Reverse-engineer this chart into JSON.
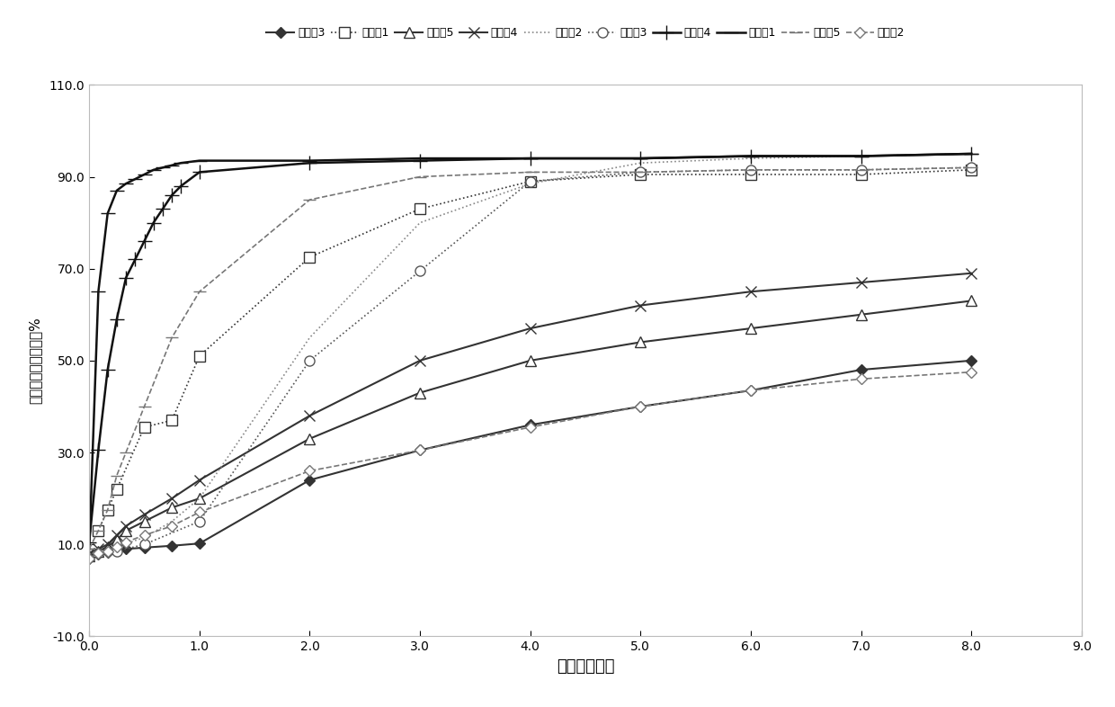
{
  "series": [
    {
      "name": "比较例3",
      "marker": "D",
      "linestyle": "-",
      "color": "#333333",
      "markersize": 6,
      "markerfacecolor": "#333333",
      "linewidth": 1.5,
      "x": [
        0.0,
        0.083,
        0.167,
        0.25,
        0.333,
        0.5,
        0.75,
        1.0,
        2.0,
        3.0,
        4.0,
        5.0,
        6.0,
        7.0,
        8.0
      ],
      "y": [
        7.0,
        7.8,
        8.2,
        8.7,
        9.0,
        9.3,
        9.7,
        10.2,
        24.0,
        30.5,
        36.0,
        40.0,
        43.5,
        48.0,
        50.0
      ]
    },
    {
      "name": "实施例1",
      "marker": "s",
      "linestyle": ":",
      "color": "#333333",
      "markersize": 8,
      "markerfacecolor": "white",
      "linewidth": 1.2,
      "x": [
        0.083,
        0.167,
        0.25,
        0.5,
        0.75,
        1.0,
        2.0,
        3.0,
        4.0,
        5.0,
        6.0,
        7.0,
        8.0
      ],
      "y": [
        13.0,
        17.5,
        22.0,
        35.5,
        37.0,
        51.0,
        72.5,
        83.0,
        89.0,
        90.5,
        90.5,
        90.5,
        91.5
      ]
    },
    {
      "name": "比较例5",
      "marker": "^",
      "linestyle": "-",
      "color": "#333333",
      "markersize": 8,
      "markerfacecolor": "white",
      "linewidth": 1.5,
      "x": [
        0.0,
        0.083,
        0.167,
        0.25,
        0.333,
        0.5,
        0.75,
        1.0,
        2.0,
        3.0,
        4.0,
        5.0,
        6.0,
        7.0,
        8.0
      ],
      "y": [
        7.5,
        8.5,
        9.5,
        11.0,
        13.0,
        15.0,
        18.0,
        20.0,
        33.0,
        43.0,
        50.0,
        54.0,
        57.0,
        60.0,
        63.0
      ]
    },
    {
      "name": "比较例4",
      "marker": "x",
      "linestyle": "-",
      "color": "#333333",
      "markersize": 9,
      "markerfacecolor": "#333333",
      "linewidth": 1.5,
      "x": [
        0.0,
        0.083,
        0.167,
        0.25,
        0.333,
        0.5,
        0.75,
        1.0,
        2.0,
        3.0,
        4.0,
        5.0,
        6.0,
        7.0,
        8.0
      ],
      "y": [
        8.0,
        9.0,
        10.0,
        12.0,
        14.0,
        16.5,
        20.0,
        24.0,
        38.0,
        50.0,
        57.0,
        62.0,
        65.0,
        67.0,
        69.0
      ]
    },
    {
      "name": "实施例2",
      "marker": null,
      "linestyle": ":",
      "color": "#888888",
      "markersize": 0,
      "markerfacecolor": "white",
      "linewidth": 1.2,
      "x": [
        0.0,
        0.25,
        0.5,
        0.75,
        1.0,
        2.0,
        3.0,
        4.0,
        5.0,
        6.0,
        7.0,
        8.0
      ],
      "y": [
        8.0,
        9.5,
        11.5,
        15.0,
        20.0,
        55.0,
        80.0,
        88.5,
        93.0,
        94.0,
        94.5,
        95.0
      ]
    },
    {
      "name": "实施例3",
      "marker": "o",
      "linestyle": ":",
      "color": "#555555",
      "markersize": 8,
      "markerfacecolor": "white",
      "linewidth": 1.2,
      "x": [
        0.25,
        0.5,
        1.0,
        2.0,
        3.0,
        4.0,
        5.0,
        6.0,
        7.0,
        8.0
      ],
      "y": [
        8.5,
        10.0,
        15.0,
        50.0,
        69.5,
        89.0,
        91.0,
        91.5,
        91.5,
        92.0
      ]
    },
    {
      "name": "实施例4",
      "marker": "+",
      "linestyle": "-",
      "color": "#111111",
      "markersize": 11,
      "markerfacecolor": "#111111",
      "linewidth": 1.8,
      "x": [
        0.0,
        0.083,
        0.167,
        0.25,
        0.333,
        0.417,
        0.5,
        0.583,
        0.667,
        0.75,
        0.833,
        1.0,
        2.0,
        3.0,
        4.0,
        5.0,
        6.0,
        7.0,
        8.0
      ],
      "y": [
        10.5,
        30.5,
        48.0,
        59.0,
        68.0,
        72.0,
        76.0,
        80.0,
        83.0,
        86.0,
        88.0,
        91.0,
        93.0,
        93.5,
        94.0,
        94.0,
        94.5,
        94.5,
        95.0
      ]
    },
    {
      "name": "比较例1",
      "marker": "_",
      "linestyle": "-",
      "color": "#111111",
      "markersize": 12,
      "markerfacecolor": "#111111",
      "linewidth": 1.8,
      "x": [
        0.0,
        0.083,
        0.167,
        0.25,
        0.333,
        0.417,
        0.5,
        0.583,
        0.667,
        0.75,
        0.833,
        1.0,
        2.0,
        3.0,
        4.0,
        5.0,
        6.0,
        7.0,
        8.0
      ],
      "y": [
        9.0,
        65.0,
        82.0,
        87.0,
        88.5,
        89.5,
        90.5,
        91.5,
        92.0,
        92.5,
        93.0,
        93.5,
        93.5,
        94.0,
        94.0,
        94.0,
        94.5,
        94.5,
        95.0
      ]
    },
    {
      "name": "实施例5",
      "marker": "_",
      "linestyle": "--",
      "color": "#777777",
      "markersize": 10,
      "markerfacecolor": "#777777",
      "linewidth": 1.2,
      "x": [
        0.0,
        0.083,
        0.167,
        0.25,
        0.333,
        0.5,
        0.75,
        1.0,
        2.0,
        3.0,
        4.0,
        5.0,
        6.0,
        7.0,
        8.0
      ],
      "y": [
        9.0,
        13.0,
        17.5,
        25.0,
        30.0,
        40.0,
        55.0,
        65.0,
        85.0,
        90.0,
        91.0,
        91.0,
        91.5,
        91.5,
        92.0
      ]
    },
    {
      "name": "比较例2",
      "marker": "D",
      "linestyle": "--",
      "color": "#777777",
      "markersize": 6,
      "markerfacecolor": "white",
      "linewidth": 1.2,
      "x": [
        0.0,
        0.083,
        0.167,
        0.25,
        0.333,
        0.5,
        0.75,
        1.0,
        2.0,
        3.0,
        4.0,
        5.0,
        6.0,
        7.0,
        8.0
      ],
      "y": [
        7.0,
        8.0,
        8.5,
        9.5,
        10.5,
        12.0,
        14.0,
        17.0,
        26.0,
        30.5,
        35.5,
        40.0,
        43.5,
        46.0,
        47.5
      ]
    }
  ],
  "xlabel": "时间（小时）",
  "ylabel": "布洛芬累积释放比例%",
  "xlim": [
    0.0,
    9.0
  ],
  "ylim": [
    -10.0,
    110.0
  ],
  "yticks": [
    -10.0,
    10.0,
    30.0,
    50.0,
    70.0,
    90.0,
    110.0
  ],
  "xticks": [
    0.0,
    1.0,
    2.0,
    3.0,
    4.0,
    5.0,
    6.0,
    7.0,
    8.0,
    9.0
  ],
  "background_color": "#ffffff"
}
